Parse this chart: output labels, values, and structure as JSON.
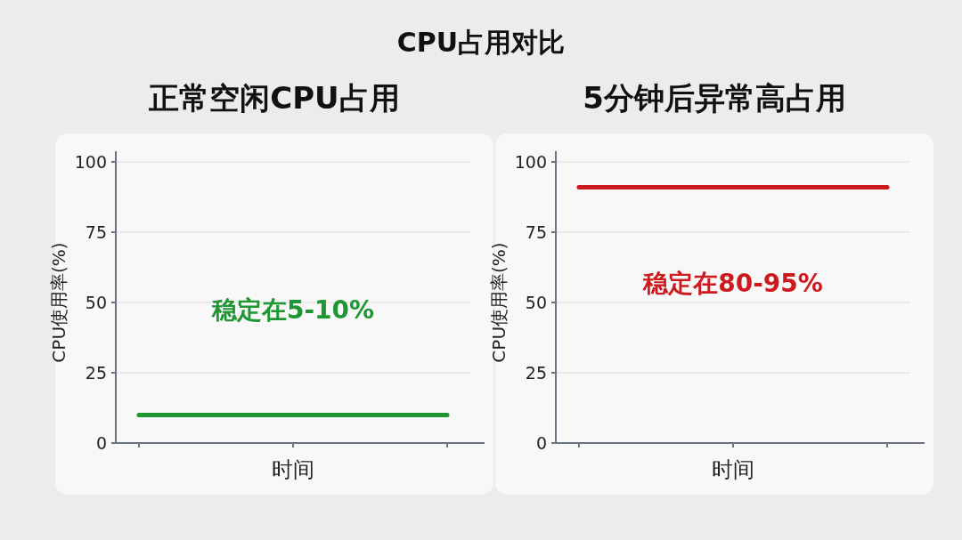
{
  "chart_data": [
    {
      "type": "line",
      "title": "CPU占用对比",
      "subtitle": "正常空闲CPU占用",
      "categories": [
        null,
        null,
        null
      ],
      "series": [
        {
          "color": "#1e9634",
          "values": [
            10,
            10,
            10
          ]
        }
      ],
      "xlabel": "时间",
      "ylabel": "CPU使用率(%)",
      "ylim": [
        0,
        100
      ],
      "yticks": [
        0,
        25,
        50,
        75,
        100
      ],
      "grid": "y",
      "marker": "none",
      "line_style": "solid",
      "annotations": [
        "稳定在5-10%"
      ]
    },
    {
      "type": "line",
      "subtitle": "5分钟后异常高占用",
      "categories": [
        null,
        null,
        null
      ],
      "series": [
        {
          "color": "#cc1a1f",
          "values": [
            91,
            91,
            91
          ]
        }
      ],
      "xlabel": "时间",
      "ylabel": "CPU使用率(%)",
      "ylim": [
        0,
        100
      ],
      "yticks": [
        0,
        25,
        50,
        75,
        100
      ],
      "grid": "y",
      "marker": "none",
      "line_style": "solid",
      "annotations": [
        "稳定在80-95%"
      ]
    }
  ]
}
